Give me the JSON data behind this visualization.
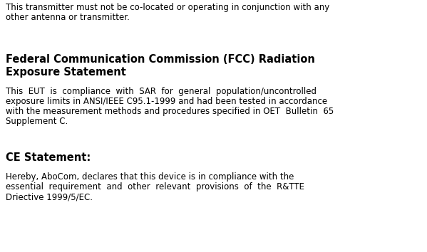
{
  "background_color": "#ffffff",
  "text_color": "#000000",
  "para1_line1": "This transmitter must not be co-located or operating in conjunction with any",
  "para1_line2": "other antenna or transmitter.",
  "heading2_line1": "Federal Communication Commission (FCC) Radiation",
  "heading2_line2": "Exposure Statement",
  "para2_line1": "This  EUT  is  compliance  with  SAR  for  general  population/uncontrolled",
  "para2_line2": "exposure limits in ANSI/IEEE C95.1-1999 and had been tested in accordance",
  "para2_line3": "with the measurement methods and procedures specified in OET  Bulletin  65",
  "para2_line4": "Supplement C.",
  "heading3": "CE Statement:",
  "para3_line1": "Hereby, AboCom, declares that this device is in compliance with the",
  "para3_line2": "essential  requirement  and  other  relevant  provisions  of  the  R&TTE",
  "para3_line3": "Driective 1999/5/EC.",
  "font_size_body": 8.5,
  "font_size_heading": 10.5,
  "fig_width": 5.99,
  "fig_height": 3.54,
  "dpi": 100
}
